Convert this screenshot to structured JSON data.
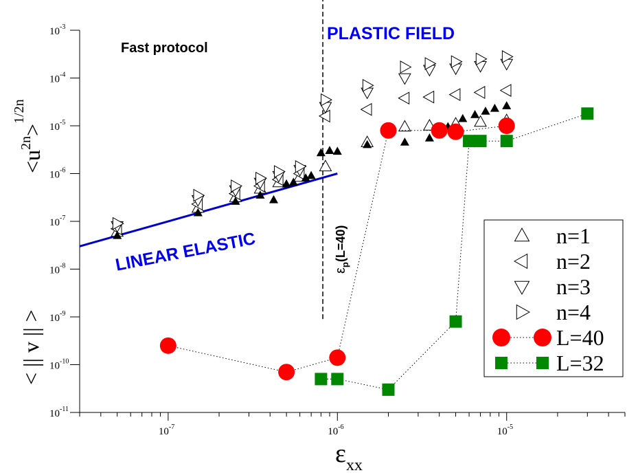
{
  "chart_data": {
    "type": "scatter",
    "x_scale": "log",
    "y_scale": "log",
    "xlim": [
      3e-08,
      5e-05
    ],
    "ylim": [
      1e-11,
      0.001
    ],
    "x_ticks": [
      {
        "value": 1e-07,
        "base": "10",
        "exp": "-7"
      },
      {
        "value": 1e-06,
        "base": "10",
        "exp": "-6"
      },
      {
        "value": 1e-05,
        "base": "10",
        "exp": "-5"
      }
    ],
    "y_ticks": [
      {
        "value": 1e-11,
        "base": "10",
        "exp": "-11"
      },
      {
        "value": 1e-10,
        "base": "10",
        "exp": "-10"
      },
      {
        "value": 1e-09,
        "base": "10",
        "exp": "-9"
      },
      {
        "value": 1e-08,
        "base": "10",
        "exp": "-8"
      },
      {
        "value": 1e-07,
        "base": "10",
        "exp": "-7"
      },
      {
        "value": 1e-06,
        "base": "10",
        "exp": "-6"
      },
      {
        "value": 1e-05,
        "base": "10",
        "exp": "-5"
      },
      {
        "value": 0.0001,
        "base": "10",
        "exp": "-4"
      },
      {
        "value": 0.001,
        "base": "10",
        "exp": "-3"
      }
    ],
    "xlabel": {
      "main": "ε",
      "sub": "xx"
    },
    "ylabel_top": {
      "open": "<u",
      "sup": "2n",
      "close": ">",
      "exp": "1/2n"
    },
    "ylabel_bottom": "< || v || >",
    "grid": false,
    "legend_position": "lower-right",
    "annotations": {
      "protocol": "Fast protocol",
      "plastic": "PLASTIC FIELD",
      "linear": "LINEAR ELASTIC",
      "eps_p": {
        "main": "ε",
        "sub": "p",
        "rest": "(L=40)"
      }
    },
    "colors": {
      "plastic": "#0000ee",
      "linear_fit": "#0000cc",
      "L40": "#ff0000",
      "L32": "#008800"
    },
    "linear_fit": {
      "x": [
        3e-08,
        1e-06
      ],
      "y": [
        3e-08,
        1e-06
      ]
    },
    "threshold_line": {
      "x": 8.2e-07,
      "y": [
        9e-10,
        0.001
      ]
    },
    "series": [
      {
        "name": "n=1",
        "marker": "triangle-up",
        "values": [
          [
            5e-08,
            6e-08
          ],
          [
            1.5e-07,
            1.9e-07
          ],
          [
            2.5e-07,
            3.2e-07
          ],
          [
            3.5e-07,
            4.8e-07
          ],
          [
            4.5e-07,
            6.5e-07
          ],
          [
            6e-07,
            8.5e-07
          ],
          [
            8.5e-07,
            1.4e-06
          ],
          [
            1.5e-06,
            4.5e-06
          ],
          [
            2.5e-06,
            9.5e-06
          ],
          [
            3.5e-06,
            1e-05
          ],
          [
            5e-06,
            1.1e-05
          ],
          [
            7e-06,
            1.2e-05
          ],
          [
            1e-05,
            1.3e-05
          ]
        ]
      },
      {
        "name": "n=2",
        "marker": "triangle-left",
        "values": [
          [
            5e-08,
            7e-08
          ],
          [
            1.5e-07,
            2.3e-07
          ],
          [
            2.5e-07,
            3.8e-07
          ],
          [
            3.5e-07,
            5.5e-07
          ],
          [
            4.5e-07,
            7.5e-07
          ],
          [
            6e-07,
            1e-06
          ],
          [
            8.5e-07,
            1.6e-05
          ],
          [
            1.5e-06,
            2.2e-05
          ],
          [
            2.5e-06,
            3.8e-05
          ],
          [
            3.5e-06,
            4e-05
          ],
          [
            5e-06,
            4.5e-05
          ],
          [
            7e-06,
            5e-05
          ],
          [
            1e-05,
            5.5e-05
          ]
        ]
      },
      {
        "name": "n=3",
        "marker": "triangle-down",
        "values": [
          [
            5e-08,
            8e-08
          ],
          [
            1.5e-07,
            2.8e-07
          ],
          [
            2.5e-07,
            4.5e-07
          ],
          [
            3.5e-07,
            6.5e-07
          ],
          [
            4.5e-07,
            9e-07
          ],
          [
            6e-07,
            1.2e-06
          ],
          [
            8.5e-07,
            2.5e-05
          ],
          [
            1.5e-06,
            5e-05
          ],
          [
            2.5e-06,
            0.0001
          ],
          [
            3.5e-06,
            0.00015
          ],
          [
            5e-06,
            0.00016
          ],
          [
            7e-06,
            0.00018
          ],
          [
            1e-05,
            0.0002
          ]
        ]
      },
      {
        "name": "n=4",
        "marker": "triangle-right",
        "values": [
          [
            5e-08,
            9e-08
          ],
          [
            1.5e-07,
            3.5e-07
          ],
          [
            2.5e-07,
            5.5e-07
          ],
          [
            3.5e-07,
            8e-07
          ],
          [
            4.5e-07,
            1.1e-06
          ],
          [
            6e-07,
            1.4e-06
          ],
          [
            8.5e-07,
            3.5e-05
          ],
          [
            1.5e-06,
            7e-05
          ],
          [
            2.5e-06,
            0.00017
          ],
          [
            3.5e-06,
            0.0002
          ],
          [
            5e-06,
            0.00022
          ],
          [
            7e-06,
            0.00025
          ],
          [
            1e-05,
            0.00028
          ]
        ]
      },
      {
        "name": "n=1 (filled)",
        "marker": "triangle-up-filled",
        "values": [
          [
            5e-08,
            5e-08
          ],
          [
            1.5e-07,
            1.5e-07
          ],
          [
            2.5e-07,
            2.6e-07
          ],
          [
            3.5e-07,
            3.5e-07
          ],
          [
            4.2e-07,
            2.8e-07
          ],
          [
            5e-07,
            6e-07
          ],
          [
            5.5e-07,
            6.5e-07
          ],
          [
            6.5e-07,
            8e-07
          ],
          [
            7e-07,
            9e-07
          ],
          [
            8e-07,
            2.7e-06
          ],
          [
            9e-07,
            3e-06
          ],
          [
            1e-06,
            2.9e-06
          ],
          [
            1.5e-06,
            4e-06
          ],
          [
            2.5e-06,
            4.5e-06
          ],
          [
            3.5e-06,
            5.5e-06
          ],
          [
            4.5e-06,
            9.5e-06
          ],
          [
            5.5e-06,
            1.4e-05
          ],
          [
            6.5e-06,
            1.7e-05
          ],
          [
            7.5e-06,
            2e-05
          ],
          [
            8.5e-06,
            2.3e-05
          ],
          [
            1e-05,
            2.6e-05
          ]
        ]
      },
      {
        "name": "L=40",
        "marker": "circle",
        "line": "dotted",
        "values": [
          [
            1e-07,
            2.5e-10
          ],
          [
            5e-07,
            7e-11
          ],
          [
            1e-06,
            1.4e-10
          ],
          [
            2e-06,
            8e-06
          ],
          [
            4e-06,
            8e-06
          ],
          [
            5e-06,
            7.5e-06
          ],
          [
            1e-05,
            1e-05
          ]
        ]
      },
      {
        "name": "L=32",
        "marker": "square",
        "line": "dotted",
        "values": [
          [
            8e-07,
            5e-11
          ],
          [
            1e-06,
            5e-11
          ],
          [
            2e-06,
            3e-11
          ],
          [
            5e-06,
            8e-10
          ],
          [
            6e-06,
            4.8e-06
          ],
          [
            7e-06,
            4.8e-06
          ],
          [
            1e-05,
            4.8e-06
          ],
          [
            3e-05,
            1.8e-05
          ]
        ]
      }
    ],
    "legend": [
      {
        "label": "n=1",
        "marker": "triangle-up"
      },
      {
        "label": "n=2",
        "marker": "triangle-left"
      },
      {
        "label": "n=3",
        "marker": "triangle-down"
      },
      {
        "label": "n=4",
        "marker": "triangle-right"
      },
      {
        "label": "L=40",
        "marker": "circle"
      },
      {
        "label": "L=32",
        "marker": "square"
      }
    ]
  }
}
